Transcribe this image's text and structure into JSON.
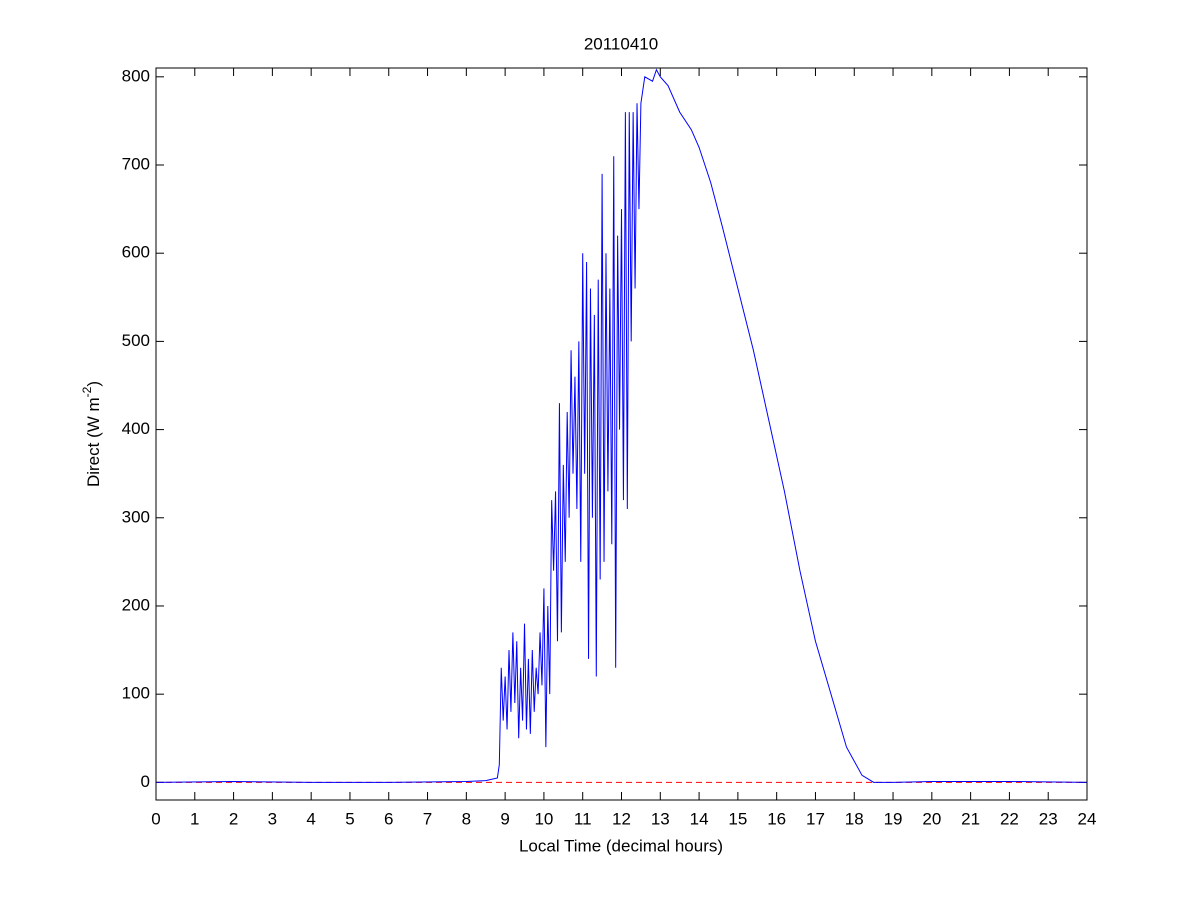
{
  "chart_data": {
    "type": "line",
    "title": "20110410",
    "xlabel": "Local Time (decimal hours)",
    "ylabel": "Direct (W m",
    "ylabel_sup": "-2",
    "ylabel_end": ")",
    "series": [
      {
        "color": "#0000ff",
        "x": [
          0,
          2,
          4,
          6,
          8,
          8.5,
          8.8,
          8.85,
          8.9,
          8.95,
          9.0,
          9.05,
          9.1,
          9.15,
          9.2,
          9.25,
          9.3,
          9.35,
          9.4,
          9.45,
          9.5,
          9.55,
          9.6,
          9.65,
          9.7,
          9.75,
          9.8,
          9.85,
          9.9,
          9.95,
          10.0,
          10.05,
          10.1,
          10.15,
          10.2,
          10.25,
          10.3,
          10.35,
          10.4,
          10.45,
          10.5,
          10.55,
          10.6,
          10.65,
          10.7,
          10.75,
          10.8,
          10.85,
          10.9,
          10.95,
          11.0,
          11.05,
          11.1,
          11.15,
          11.2,
          11.25,
          11.3,
          11.35,
          11.4,
          11.45,
          11.5,
          11.55,
          11.6,
          11.65,
          11.7,
          11.75,
          11.8,
          11.85,
          11.9,
          11.95,
          12.0,
          12.05,
          12.1,
          12.15,
          12.2,
          12.25,
          12.3,
          12.35,
          12.4,
          12.45,
          12.5,
          12.6,
          12.8,
          12.9,
          13.0,
          13.2,
          13.5,
          13.8,
          14.0,
          14.3,
          14.6,
          15.0,
          15.4,
          15.8,
          16.2,
          16.6,
          17.0,
          17.4,
          17.8,
          18.2,
          18.5,
          19,
          20,
          22,
          24
        ],
        "values": [
          0,
          1,
          0,
          0,
          1,
          2,
          5,
          20,
          130,
          70,
          120,
          60,
          150,
          80,
          170,
          90,
          160,
          50,
          130,
          70,
          180,
          60,
          140,
          55,
          150,
          80,
          130,
          100,
          170,
          110,
          220,
          40,
          200,
          100,
          320,
          240,
          330,
          160,
          430,
          170,
          360,
          250,
          420,
          300,
          490,
          350,
          460,
          310,
          500,
          250,
          600,
          350,
          590,
          140,
          560,
          300,
          530,
          120,
          570,
          230,
          690,
          250,
          600,
          330,
          560,
          270,
          710,
          130,
          620,
          400,
          650,
          320,
          760,
          310,
          760,
          500,
          760,
          560,
          770,
          650,
          770,
          800,
          795,
          808,
          800,
          790,
          760,
          740,
          720,
          680,
          630,
          560,
          490,
          410,
          330,
          240,
          160,
          100,
          40,
          8,
          0,
          0,
          1,
          1,
          0
        ]
      }
    ],
    "hline": 0,
    "hline_color": "#ff0000",
    "xlim": [
      0,
      24
    ],
    "xticks": [
      0,
      1,
      2,
      3,
      4,
      5,
      6,
      7,
      8,
      9,
      10,
      11,
      12,
      13,
      14,
      15,
      16,
      17,
      18,
      19,
      20,
      21,
      22,
      23,
      24
    ],
    "ylim": [
      -20,
      810
    ],
    "yticks": [
      0,
      100,
      200,
      300,
      400,
      500,
      600,
      700,
      800
    ]
  }
}
